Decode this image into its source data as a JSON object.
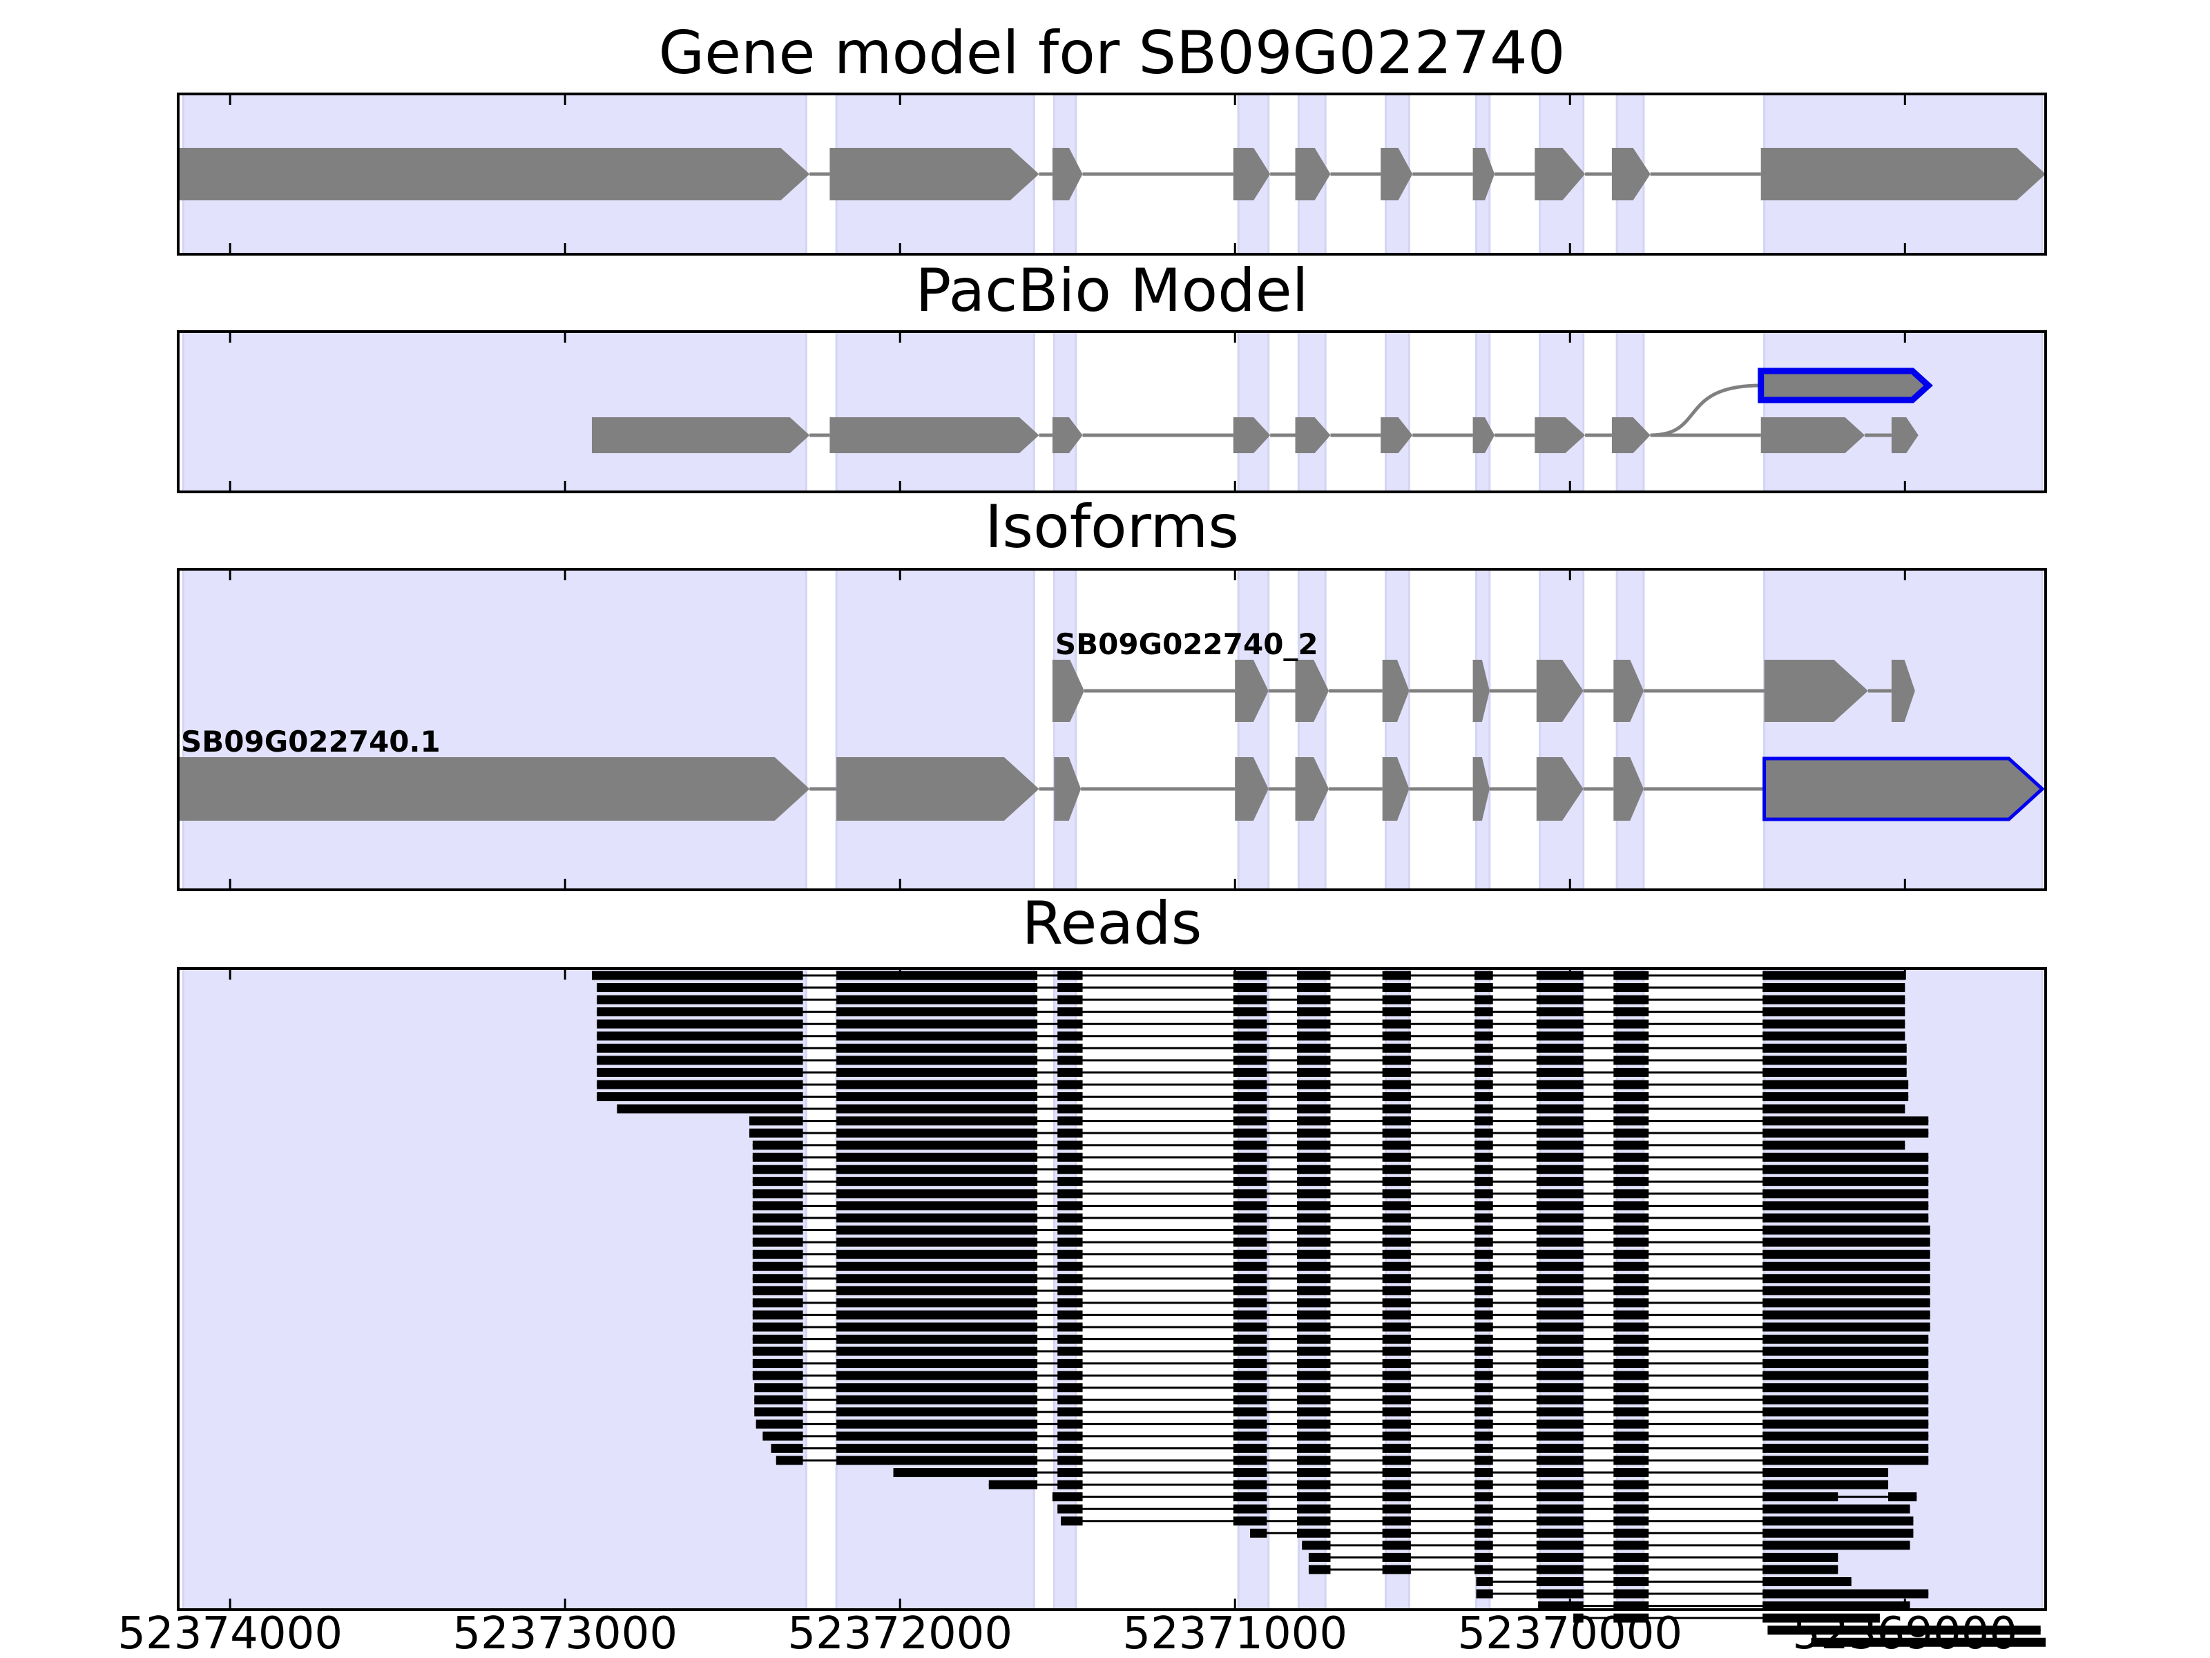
{
  "figure": {
    "xaxis": {
      "direction": "reversed",
      "range": [
        52374155,
        52368580
      ],
      "ticks": [
        52374000,
        52373000,
        52372000,
        52371000,
        52370000,
        52369000
      ],
      "tick_labels": [
        "52374000",
        "52373000",
        "52372000",
        "52371000",
        "52370000",
        "52369000"
      ]
    },
    "colors": {
      "exon_band": "#e2e2fc",
      "band_edge": "#d4d4f4",
      "feature": "#808080",
      "highlight": "#0000ee",
      "read": "#000000"
    },
    "panels": [
      {
        "id": "gene-model",
        "title": "Gene model for SB09G022740"
      },
      {
        "id": "pacbio-model",
        "title": "PacBio Model"
      },
      {
        "id": "isoforms",
        "title": "Isoforms"
      },
      {
        "id": "reads",
        "title": "Reads"
      }
    ]
  },
  "chart_data": {
    "type": "gene-structure",
    "x_units": "genomic coordinate (bp), decreasing left to right",
    "exon_regions": [
      [
        52374140,
        52372280
      ],
      [
        52372190,
        52371600
      ],
      [
        52371540,
        52371475
      ],
      [
        52370990,
        52370900
      ],
      [
        52370810,
        52370730
      ],
      [
        52370550,
        52370480
      ],
      [
        52370280,
        52370240
      ],
      [
        52370090,
        52369960
      ],
      [
        52369860,
        52369780
      ],
      [
        52369420,
        52368590
      ]
    ],
    "gene_model": {
      "exons": [
        [
          52374155,
          52372270
        ],
        [
          52372210,
          52371585
        ],
        [
          52371545,
          52371455
        ],
        [
          52371005,
          52370895
        ],
        [
          52370820,
          52370715
        ],
        [
          52370565,
          52370470
        ],
        [
          52370290,
          52370225
        ],
        [
          52370105,
          52369955
        ],
        [
          52369875,
          52369760
        ],
        [
          52369430,
          52368580
        ]
      ]
    },
    "pacbio_model": {
      "isoforms": [
        {
          "highlight": false,
          "exons": [
            [
              52372920,
              52372270
            ],
            [
              52372210,
              52371585
            ],
            [
              52371545,
              52371455
            ],
            [
              52371005,
              52370895
            ],
            [
              52370820,
              52370715
            ],
            [
              52370565,
              52370470
            ],
            [
              52370290,
              52370225
            ],
            [
              52370105,
              52369955
            ],
            [
              52369875,
              52369760
            ],
            [
              52369430,
              52369120
            ],
            [
              52369040,
              52368960
            ]
          ]
        },
        {
          "highlight": true,
          "branch_from": 52369760,
          "exons": [
            [
              52369430,
              52368930
            ]
          ]
        }
      ]
    },
    "isoforms": [
      {
        "name": "SB09G022740_2",
        "highlight_last": false,
        "exons": [
          [
            52371545,
            52371450
          ],
          [
            52371000,
            52370900
          ],
          [
            52370820,
            52370720
          ],
          [
            52370560,
            52370480
          ],
          [
            52370290,
            52370240
          ],
          [
            52370100,
            52369960
          ],
          [
            52369870,
            52369780
          ],
          [
            52369420,
            52369110
          ],
          [
            52369040,
            52368970
          ]
        ]
      },
      {
        "name": "SB09G022740.1",
        "highlight_last": true,
        "exons": [
          [
            52374155,
            52372270
          ],
          [
            52372190,
            52371585
          ],
          [
            52371540,
            52371460
          ],
          [
            52371000,
            52370900
          ],
          [
            52370820,
            52370720
          ],
          [
            52370560,
            52370480
          ],
          [
            52370290,
            52370240
          ],
          [
            52370100,
            52369960
          ],
          [
            52369870,
            52369780
          ],
          [
            52369420,
            52368590
          ]
        ]
      }
    ],
    "read_exon_template": [
      [
        52372290,
        52372290
      ],
      [
        52372190,
        52371590
      ],
      [
        52371530,
        52371455
      ],
      [
        52371005,
        52370905
      ],
      [
        52370815,
        52370715
      ],
      [
        52370560,
        52370475
      ],
      [
        52370285,
        52370230
      ],
      [
        52370100,
        52369960
      ],
      [
        52369870,
        52369765
      ],
      [
        52369425,
        52369000
      ]
    ],
    "reads": [
      {
        "s": 52372920,
        "e": 52369000
      },
      {
        "s": 52372905,
        "e": 52369000
      },
      {
        "s": 52372905,
        "e": 52369000
      },
      {
        "s": 52372905,
        "e": 52369000
      },
      {
        "s": 52372905,
        "e": 52369000
      },
      {
        "s": 52372905,
        "e": 52369000
      },
      {
        "s": 52372905,
        "e": 52368995
      },
      {
        "s": 52372905,
        "e": 52368995
      },
      {
        "s": 52372905,
        "e": 52368995
      },
      {
        "s": 52372905,
        "e": 52368990
      },
      {
        "s": 52372905,
        "e": 52368990
      },
      {
        "s": 52372845,
        "e": 52369000
      },
      {
        "s": 52372450,
        "e": 52368930
      },
      {
        "s": 52372450,
        "e": 52368930
      },
      {
        "s": 52372440,
        "e": 52369000
      },
      {
        "s": 52372440,
        "e": 52368930
      },
      {
        "s": 52372440,
        "e": 52368930
      },
      {
        "s": 52372440,
        "e": 52368930
      },
      {
        "s": 52372440,
        "e": 52368930
      },
      {
        "s": 52372440,
        "e": 52368930
      },
      {
        "s": 52372440,
        "e": 52368930
      },
      {
        "s": 52372440,
        "e": 52368925
      },
      {
        "s": 52372440,
        "e": 52368925
      },
      {
        "s": 52372440,
        "e": 52368925
      },
      {
        "s": 52372440,
        "e": 52368925
      },
      {
        "s": 52372440,
        "e": 52368925
      },
      {
        "s": 52372440,
        "e": 52368925
      },
      {
        "s": 52372440,
        "e": 52368925
      },
      {
        "s": 52372440,
        "e": 52368925
      },
      {
        "s": 52372440,
        "e": 52368925
      },
      {
        "s": 52372440,
        "e": 52368930
      },
      {
        "s": 52372440,
        "e": 52368930
      },
      {
        "s": 52372440,
        "e": 52368930
      },
      {
        "s": 52372440,
        "e": 52368930
      },
      {
        "s": 52372435,
        "e": 52368930
      },
      {
        "s": 52372435,
        "e": 52368930
      },
      {
        "s": 52372435,
        "e": 52368930
      },
      {
        "s": 52372430,
        "e": 52368930
      },
      {
        "s": 52372410,
        "e": 52368930
      },
      {
        "s": 52372385,
        "e": 52368930
      },
      {
        "s": 52372370,
        "e": 52368930
      },
      {
        "s": 52372020,
        "e": 52369050
      },
      {
        "s": 52371735,
        "e": 52369050
      },
      {
        "s": 52371545,
        "e": 52368965,
        "ex": [
          [
            52371545,
            52371455
          ],
          [
            52371005,
            52370905
          ],
          [
            52370815,
            52370715
          ],
          [
            52370560,
            52370475
          ],
          [
            52370285,
            52370230
          ],
          [
            52370100,
            52369960
          ],
          [
            52369870,
            52369765
          ],
          [
            52369425,
            52369200
          ],
          [
            52369050,
            52368965
          ]
        ]
      },
      {
        "s": 52371545,
        "e": 52368985
      },
      {
        "s": 52371520,
        "e": 52368975
      },
      {
        "s": 52370955,
        "e": 52368975
      },
      {
        "s": 52370800,
        "e": 52368985
      },
      {
        "s": 52370780,
        "e": 52369200
      },
      {
        "s": 52370780,
        "e": 52369200
      },
      {
        "s": 52370280,
        "e": 52369160
      },
      {
        "s": 52370280,
        "e": 52368930
      },
      {
        "s": 52370095,
        "e": 52368985
      },
      {
        "s": 52369990,
        "e": 52369075
      },
      {
        "s": 52369410,
        "e": 52368595
      },
      {
        "s": 52369280,
        "e": 52368580
      }
    ]
  }
}
